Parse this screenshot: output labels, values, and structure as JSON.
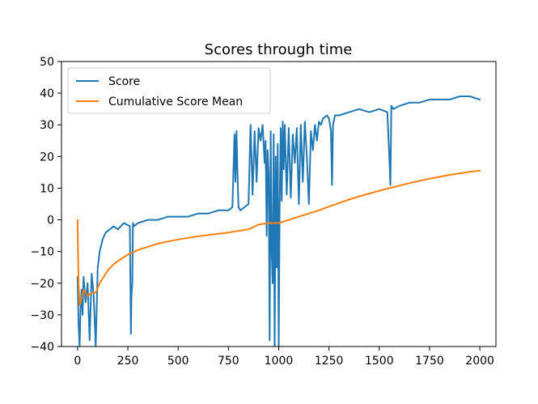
{
  "chart_data": {
    "type": "line",
    "title": "Scores through time",
    "xlabel": "",
    "ylabel": "",
    "xlim": [
      -80,
      2080
    ],
    "ylim": [
      -40,
      50
    ],
    "x_ticks": [
      0,
      250,
      500,
      750,
      1000,
      1250,
      1500,
      1750,
      2000
    ],
    "y_ticks": [
      -40,
      -30,
      -20,
      -10,
      0,
      10,
      20,
      30,
      40,
      50
    ],
    "grid": false,
    "legend_position": "top-left",
    "series": [
      {
        "name": "Score",
        "color": "#1f77b4",
        "x": [
          0,
          5,
          10,
          15,
          20,
          25,
          30,
          40,
          50,
          60,
          70,
          80,
          90,
          100,
          110,
          125,
          140,
          160,
          180,
          200,
          230,
          260,
          265,
          268,
          272,
          275,
          280,
          300,
          350,
          400,
          450,
          500,
          550,
          600,
          650,
          700,
          750,
          770,
          780,
          785,
          790,
          795,
          800,
          810,
          830,
          850,
          860,
          870,
          880,
          890,
          900,
          910,
          920,
          930,
          935,
          940,
          945,
          950,
          955,
          960,
          965,
          970,
          975,
          980,
          985,
          990,
          995,
          1000,
          1005,
          1010,
          1015,
          1020,
          1025,
          1030,
          1040,
          1050,
          1060,
          1070,
          1080,
          1090,
          1100,
          1110,
          1120,
          1130,
          1140,
          1150,
          1160,
          1170,
          1180,
          1190,
          1200,
          1210,
          1220,
          1240,
          1250,
          1260,
          1265,
          1270,
          1280,
          1300,
          1350,
          1400,
          1450,
          1500,
          1540,
          1550,
          1555,
          1560,
          1570,
          1600,
          1650,
          1700,
          1750,
          1800,
          1850,
          1900,
          1950,
          2000
        ],
        "values": [
          -18,
          -33,
          -40,
          -28,
          -22,
          -30,
          -18,
          -26,
          -20,
          -38,
          -17,
          -24,
          -40,
          -15,
          -10,
          -6,
          -4,
          -3,
          -2,
          -3,
          -1,
          -2,
          -36,
          -24,
          -20,
          -1,
          -2,
          -1,
          0,
          0,
          1,
          1,
          1,
          2,
          2,
          3,
          3,
          4,
          27,
          12,
          28,
          15,
          4,
          3,
          4,
          5,
          30,
          8,
          28,
          12,
          29,
          25,
          30,
          18,
          25,
          -5,
          22,
          14,
          -38,
          28,
          -10,
          -20,
          27,
          -42,
          20,
          -15,
          24,
          -40,
          5,
          29,
          6,
          31,
          16,
          30,
          8,
          29,
          7,
          27,
          18,
          29,
          5,
          30,
          12,
          31,
          20,
          5,
          28,
          22,
          30,
          25,
          31,
          30,
          32,
          33,
          32,
          28,
          11,
          30,
          33,
          33,
          34,
          35,
          34,
          35,
          34,
          20,
          11,
          36,
          35,
          36,
          37,
          37,
          38,
          38,
          38,
          39,
          39,
          38
        ]
      },
      {
        "name": "Cumulative Score Mean",
        "color": "#ff7f0e",
        "x": [
          0,
          2,
          5,
          10,
          20,
          30,
          50,
          70,
          90,
          110,
          130,
          150,
          180,
          200,
          250,
          300,
          350,
          400,
          450,
          500,
          550,
          600,
          650,
          700,
          750,
          800,
          850,
          900,
          950,
          1000,
          1050,
          1100,
          1150,
          1200,
          1250,
          1300,
          1350,
          1400,
          1450,
          1500,
          1550,
          1600,
          1650,
          1700,
          1750,
          1800,
          1850,
          1900,
          1950,
          2000
        ],
        "values": [
          0,
          -10,
          -20,
          -27,
          -25,
          -22,
          -24,
          -23,
          -23,
          -20,
          -18,
          -16,
          -14,
          -13,
          -11,
          -9.5,
          -8.5,
          -7.5,
          -6.8,
          -6.2,
          -5.7,
          -5.2,
          -4.8,
          -4.4,
          -4,
          -3.5,
          -3,
          -1.5,
          -1,
          -1,
          0,
          1,
          2,
          3,
          4.2,
          5.3,
          6.4,
          7.4,
          8.3,
          9.2,
          10,
          10.8,
          11.6,
          12.3,
          13,
          13.6,
          14.2,
          14.7,
          15.2,
          15.5
        ]
      }
    ]
  }
}
